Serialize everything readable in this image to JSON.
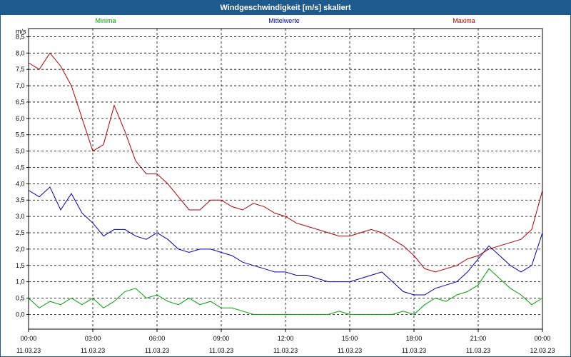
{
  "window": {
    "title": "Windgeschwindigkeit [m/s] skaliert"
  },
  "chart_data": {
    "type": "line",
    "title": "Windgeschwindigkeit [m/s] skaliert",
    "ylabel": "m/s",
    "xlabel": "",
    "ylim": [
      -0.45,
      8.75
    ],
    "xlim_hours": [
      0,
      24
    ],
    "grid": true,
    "legend": "top",
    "yticks": [
      "0,0",
      "0,5",
      "1,0",
      "1,5",
      "2,0",
      "2,5",
      "3,0",
      "3,5",
      "4,0",
      "4,5",
      "5,0",
      "5,5",
      "6,0",
      "6,5",
      "7,0",
      "7,5",
      "8,0",
      "8,5"
    ],
    "xticks": [
      {
        "time": "00:00",
        "date": "11.03.23"
      },
      {
        "time": "03:00",
        "date": "11.03.23"
      },
      {
        "time": "06:00",
        "date": "11.03.23"
      },
      {
        "time": "09:00",
        "date": "11.03.23"
      },
      {
        "time": "12:00",
        "date": "11.03.23"
      },
      {
        "time": "15:00",
        "date": "11.03.23"
      },
      {
        "time": "18:00",
        "date": "11.03.23"
      },
      {
        "time": "21:00",
        "date": "11.03.23"
      },
      {
        "time": "00:00",
        "date": "12.03.23"
      }
    ],
    "x_hours": [
      0,
      0.5,
      1,
      1.5,
      2,
      2.5,
      3,
      3.5,
      4,
      4.5,
      5,
      5.5,
      6,
      6.5,
      7,
      7.5,
      8,
      8.5,
      9,
      9.5,
      10,
      10.5,
      11,
      11.5,
      12,
      12.5,
      13,
      13.5,
      14,
      14.5,
      15,
      15.5,
      16,
      16.5,
      17,
      17.5,
      18,
      18.5,
      19,
      19.5,
      20,
      20.5,
      21,
      21.5,
      22,
      22.5,
      23,
      23.5,
      24
    ],
    "series": [
      {
        "name": "Minima",
        "color": "#00a000",
        "values": [
          0.5,
          0.2,
          0.4,
          0.3,
          0.5,
          0.3,
          0.5,
          0.2,
          0.4,
          0.7,
          0.8,
          0.5,
          0.6,
          0.4,
          0.3,
          0.5,
          0.3,
          0.4,
          0.2,
          0.2,
          0.1,
          0.0,
          0.0,
          0.0,
          0.0,
          0.0,
          0.0,
          0.0,
          0.0,
          0.1,
          0.0,
          0.0,
          0.0,
          0.0,
          0.0,
          0.1,
          0.0,
          0.3,
          0.5,
          0.4,
          0.6,
          0.7,
          0.9,
          1.4,
          1.1,
          0.8,
          0.6,
          0.3,
          0.5
        ]
      },
      {
        "name": "Mittelwerte",
        "color": "#0000b0",
        "values": [
          3.8,
          3.6,
          3.9,
          3.2,
          3.7,
          3.1,
          2.8,
          2.4,
          2.6,
          2.6,
          2.4,
          2.3,
          2.5,
          2.3,
          2.0,
          1.9,
          2.0,
          2.0,
          1.9,
          1.8,
          1.6,
          1.5,
          1.4,
          1.3,
          1.3,
          1.2,
          1.2,
          1.1,
          1.0,
          1.0,
          1.0,
          1.1,
          1.2,
          1.3,
          1.0,
          0.7,
          0.6,
          0.6,
          0.8,
          0.9,
          1.0,
          1.3,
          1.7,
          2.1,
          1.8,
          1.5,
          1.3,
          1.5,
          2.5
        ]
      },
      {
        "name": "Maxima",
        "color": "#b00000",
        "values": [
          7.7,
          7.5,
          8.0,
          7.6,
          7.0,
          6.0,
          5.0,
          5.2,
          6.4,
          5.6,
          4.7,
          4.3,
          4.3,
          4.0,
          3.6,
          3.2,
          3.2,
          3.5,
          3.5,
          3.3,
          3.2,
          3.4,
          3.3,
          3.1,
          3.0,
          2.8,
          2.7,
          2.6,
          2.5,
          2.4,
          2.4,
          2.5,
          2.6,
          2.5,
          2.3,
          2.1,
          1.8,
          1.4,
          1.3,
          1.4,
          1.5,
          1.7,
          1.8,
          2.0,
          2.1,
          2.2,
          2.3,
          2.6,
          3.8
        ]
      }
    ]
  }
}
